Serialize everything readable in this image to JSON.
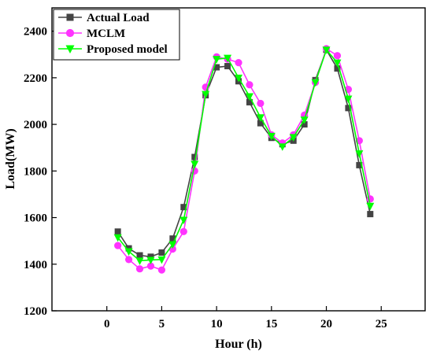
{
  "chart_data": {
    "type": "line",
    "title": "",
    "xlabel": "Hour (h)",
    "ylabel": "Load(MW)",
    "xlim": [
      -5,
      29
    ],
    "ylim": [
      1200,
      2500
    ],
    "x_ticks": [
      0,
      5,
      10,
      15,
      20,
      25
    ],
    "y_ticks": [
      1200,
      1400,
      1600,
      1800,
      2000,
      2200,
      2400
    ],
    "grid": false,
    "legend_position": "top-left",
    "x": [
      1,
      2,
      3,
      4,
      5,
      6,
      7,
      8,
      9,
      10,
      11,
      12,
      13,
      14,
      15,
      16,
      17,
      18,
      19,
      20,
      21,
      22,
      23,
      24
    ],
    "series": [
      {
        "name": "Actual Load",
        "color": "#444444",
        "marker": "square",
        "values": [
          1540,
          1468,
          1438,
          1432,
          1450,
          1510,
          1645,
          1860,
          2125,
          2245,
          2250,
          2185,
          2095,
          2005,
          1942,
          1915,
          1930,
          2000,
          2190,
          2320,
          2240,
          2070,
          1825,
          1615
        ]
      },
      {
        "name": "MCLM",
        "color": "#ff33ff",
        "marker": "circle",
        "values": [
          1480,
          1420,
          1380,
          1392,
          1375,
          1465,
          1540,
          1800,
          2160,
          2290,
          2280,
          2265,
          2170,
          2090,
          1955,
          1920,
          1955,
          2040,
          2180,
          2325,
          2295,
          2150,
          1930,
          1680
        ]
      },
      {
        "name": "Proposed model",
        "color": "#00ff00",
        "marker": "triangle-down",
        "values": [
          1515,
          1455,
          1415,
          1418,
          1420,
          1485,
          1590,
          1830,
          2130,
          2280,
          2285,
          2200,
          2120,
          2030,
          1950,
          1905,
          1945,
          2020,
          2180,
          2320,
          2265,
          2110,
          1875,
          1650
        ]
      }
    ]
  }
}
